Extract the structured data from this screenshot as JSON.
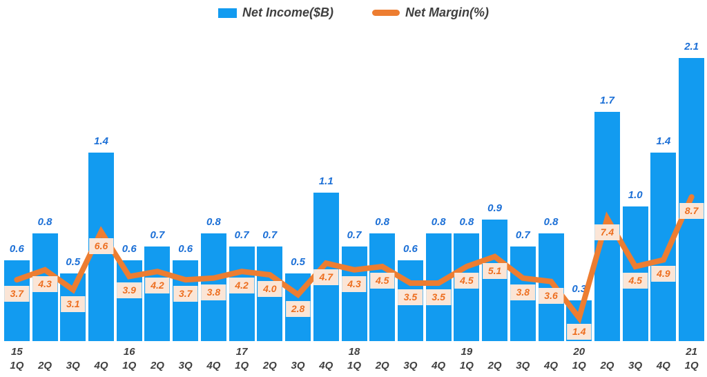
{
  "legend": {
    "income_label": "Net Income($B)",
    "margin_label": "Net Margin(%)"
  },
  "colors": {
    "bar": "#129BF0",
    "bar_label_text": "#1B6FD6",
    "line": "#ED7D31",
    "margin_label_text": "#ED6E1F",
    "margin_label_bg": "#FBE5D6",
    "axis_text": "#404040"
  },
  "chart_data": {
    "type": "bar+line combo",
    "title": "",
    "xlabel": "",
    "ylabel": "",
    "axes_visible": false,
    "grid": false,
    "legend_position": "top-center",
    "categories": [
      "1Q",
      "2Q",
      "3Q",
      "4Q",
      "1Q",
      "2Q",
      "3Q",
      "4Q",
      "1Q",
      "2Q",
      "3Q",
      "4Q",
      "1Q",
      "2Q",
      "3Q",
      "4Q",
      "1Q",
      "2Q",
      "3Q",
      "4Q",
      "1Q",
      "2Q",
      "3Q",
      "4Q",
      "1Q"
    ],
    "year_row": [
      "15",
      "",
      "",
      "",
      "16",
      "",
      "",
      "",
      "17",
      "",
      "",
      "",
      "18",
      "",
      "",
      "",
      "19",
      "",
      "",
      "",
      "20",
      "",
      "",
      "",
      "21"
    ],
    "series": [
      {
        "name": "Net Income($B)",
        "type": "bar",
        "axis": "left",
        "ylim": [
          0,
          2.4
        ],
        "values": [
          0.6,
          0.8,
          0.5,
          1.4,
          0.6,
          0.7,
          0.6,
          0.8,
          0.7,
          0.7,
          0.5,
          1.1,
          0.7,
          0.8,
          0.6,
          0.8,
          0.8,
          0.9,
          0.7,
          0.8,
          0.3,
          1.7,
          1.0,
          1.4,
          2.1
        ]
      },
      {
        "name": "Net Margin(%)",
        "type": "line",
        "axis": "right",
        "ylim": [
          0,
          10
        ],
        "values": [
          3.7,
          4.3,
          3.1,
          6.6,
          3.9,
          4.2,
          3.7,
          3.8,
          4.2,
          4.0,
          2.8,
          4.7,
          4.3,
          4.5,
          3.5,
          3.5,
          4.5,
          5.1,
          3.8,
          3.6,
          1.4,
          7.4,
          4.5,
          4.9,
          8.7
        ]
      }
    ]
  }
}
